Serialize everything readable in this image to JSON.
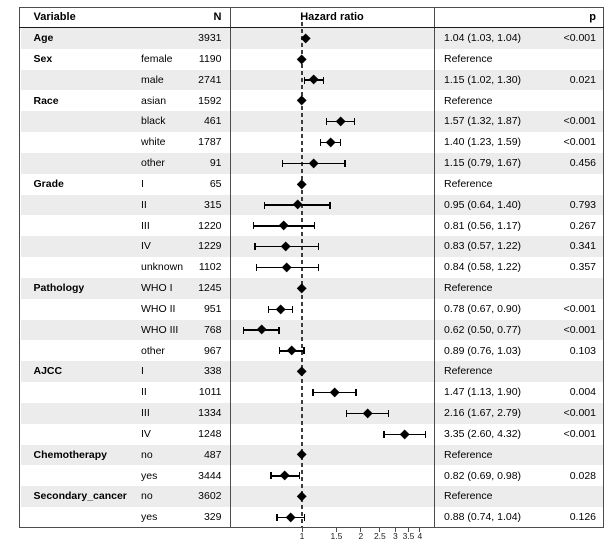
{
  "figure": {
    "type": "forest-plot",
    "columns": {
      "variable": "Variable",
      "n": "N",
      "hazard_ratio": "Hazard ratio",
      "p": "p"
    }
  },
  "colors": {
    "stripe": "#ececec",
    "frame": "#4d4d4d",
    "marker": "#000000",
    "reference_line": "#3d3d3d"
  },
  "chart_data": {
    "type": "forest",
    "title": "Hazard ratio",
    "x_scale": "log",
    "reference_value": 1,
    "x_ticks": [
      1,
      1.5,
      2,
      2.5,
      3,
      3.5,
      4
    ],
    "x_tick_labels": [
      "1",
      "1.5",
      "2",
      "2.5",
      "3",
      "3.5",
      "4"
    ],
    "rows": [
      {
        "variable": "Age",
        "subgroup": "",
        "n": "3931",
        "est": 1.04,
        "lo": 1.03,
        "hi": 1.04,
        "ref": false,
        "hr": "1.04 (1.03, 1.04)",
        "p": "<0.001"
      },
      {
        "variable": "Sex",
        "subgroup": "female",
        "n": "1190",
        "est": 1,
        "ref": true,
        "hr": "Reference",
        "p": ""
      },
      {
        "variable": "",
        "subgroup": "male",
        "n": "2741",
        "est": 1.15,
        "lo": 1.02,
        "hi": 1.3,
        "ref": false,
        "hr": "1.15 (1.02, 1.30)",
        "p": "0.021"
      },
      {
        "variable": "Race",
        "subgroup": "asian",
        "n": "1592",
        "est": 1,
        "ref": true,
        "hr": "Reference",
        "p": ""
      },
      {
        "variable": "",
        "subgroup": "black",
        "n": "461",
        "est": 1.57,
        "lo": 1.32,
        "hi": 1.87,
        "ref": false,
        "hr": "1.57 (1.32, 1.87)",
        "p": "<0.001"
      },
      {
        "variable": "",
        "subgroup": "white",
        "n": "1787",
        "est": 1.4,
        "lo": 1.23,
        "hi": 1.59,
        "ref": false,
        "hr": "1.40 (1.23, 1.59)",
        "p": "<0.001"
      },
      {
        "variable": "",
        "subgroup": "other",
        "n": "91",
        "est": 1.15,
        "lo": 0.79,
        "hi": 1.67,
        "ref": false,
        "hr": "1.15 (0.79, 1.67)",
        "p": "0.456"
      },
      {
        "variable": "Grade",
        "subgroup": "I",
        "n": "65",
        "est": 1,
        "ref": true,
        "hr": "Reference",
        "p": ""
      },
      {
        "variable": "",
        "subgroup": "II",
        "n": "315",
        "est": 0.95,
        "lo": 0.64,
        "hi": 1.4,
        "ref": false,
        "hr": "0.95 (0.64, 1.40)",
        "p": "0.793"
      },
      {
        "variable": "",
        "subgroup": "III",
        "n": "1220",
        "est": 0.81,
        "lo": 0.56,
        "hi": 1.17,
        "ref": false,
        "hr": "0.81 (0.56, 1.17)",
        "p": "0.267"
      },
      {
        "variable": "",
        "subgroup": "IV",
        "n": "1229",
        "est": 0.83,
        "lo": 0.57,
        "hi": 1.22,
        "ref": false,
        "hr": "0.83 (0.57, 1.22)",
        "p": "0.341"
      },
      {
        "variable": "",
        "subgroup": "unknown",
        "n": "1102",
        "est": 0.84,
        "lo": 0.58,
        "hi": 1.22,
        "ref": false,
        "hr": "0.84 (0.58, 1.22)",
        "p": "0.357"
      },
      {
        "variable": "Pathology",
        "subgroup": "WHO I",
        "n": "1245",
        "est": 1,
        "ref": true,
        "hr": "Reference",
        "p": ""
      },
      {
        "variable": "",
        "subgroup": "WHO II",
        "n": "951",
        "est": 0.78,
        "lo": 0.67,
        "hi": 0.9,
        "ref": false,
        "hr": "0.78 (0.67, 0.90)",
        "p": "<0.001"
      },
      {
        "variable": "",
        "subgroup": "WHO III",
        "n": "768",
        "est": 0.62,
        "lo": 0.5,
        "hi": 0.77,
        "ref": false,
        "hr": "0.62 (0.50, 0.77)",
        "p": "<0.001"
      },
      {
        "variable": "",
        "subgroup": "other",
        "n": "967",
        "est": 0.89,
        "lo": 0.76,
        "hi": 1.03,
        "ref": false,
        "hr": "0.89 (0.76, 1.03)",
        "p": "0.103"
      },
      {
        "variable": "AJCC",
        "subgroup": "I",
        "n": "338",
        "est": 1,
        "ref": true,
        "hr": "Reference",
        "p": ""
      },
      {
        "variable": "",
        "subgroup": "II",
        "n": "1011",
        "est": 1.47,
        "lo": 1.13,
        "hi": 1.9,
        "ref": false,
        "hr": "1.47 (1.13, 1.90)",
        "p": "0.004"
      },
      {
        "variable": "",
        "subgroup": "III",
        "n": "1334",
        "est": 2.16,
        "lo": 1.67,
        "hi": 2.79,
        "ref": false,
        "hr": "2.16 (1.67, 2.79)",
        "p": "<0.001"
      },
      {
        "variable": "",
        "subgroup": "IV",
        "n": "1248",
        "est": 3.35,
        "lo": 2.6,
        "hi": 4.32,
        "ref": false,
        "hr": "3.35 (2.60, 4.32)",
        "p": "<0.001"
      },
      {
        "variable": "Chemotherapy",
        "subgroup": "no",
        "n": "487",
        "est": 1,
        "ref": true,
        "hr": "Reference",
        "p": ""
      },
      {
        "variable": "",
        "subgroup": "yes",
        "n": "3444",
        "est": 0.82,
        "lo": 0.69,
        "hi": 0.98,
        "ref": false,
        "hr": "0.82 (0.69, 0.98)",
        "p": "0.028"
      },
      {
        "variable": "Secondary_cancer",
        "subgroup": "no",
        "n": "3602",
        "est": 1,
        "ref": true,
        "hr": "Reference",
        "p": ""
      },
      {
        "variable": "",
        "subgroup": "yes",
        "n": "329",
        "est": 0.88,
        "lo": 0.74,
        "hi": 1.04,
        "ref": false,
        "hr": "0.88 (0.74, 1.04)",
        "p": "0.126"
      }
    ]
  }
}
